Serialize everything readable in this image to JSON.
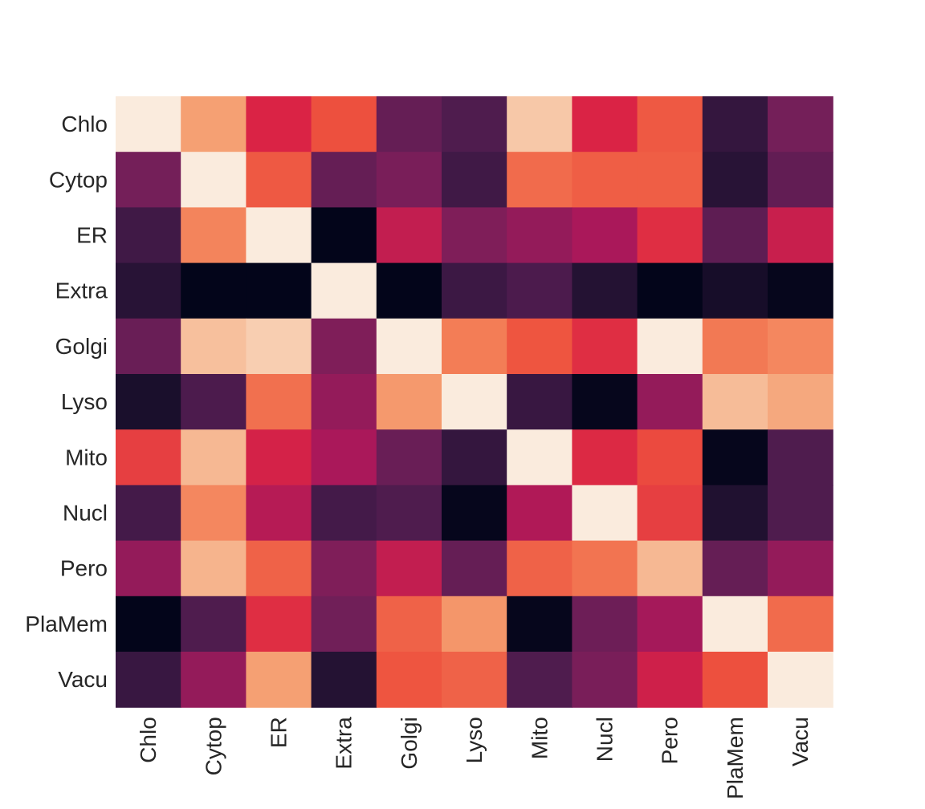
{
  "chart_data": {
    "type": "heatmap",
    "title": "",
    "xlabel": "",
    "ylabel": "",
    "row_labels": [
      "Chlo",
      "Cytop",
      "ER",
      "Extra",
      "Golgi",
      "Lyso",
      "Mito",
      "Nucl",
      "Pero",
      "PlaMem",
      "Vacu"
    ],
    "col_labels": [
      "Chlo",
      "Cytop",
      "ER",
      "Extra",
      "Golgi",
      "Lyso",
      "Mito",
      "Nucl",
      "Pero",
      "PlaMem",
      "Vacu"
    ],
    "value_range": [
      0,
      1
    ],
    "colormap": "rocket",
    "colorbar": false,
    "values": [
      [
        1.0,
        0.78,
        0.5,
        0.58,
        0.28,
        0.22,
        0.88,
        0.5,
        0.6,
        0.15,
        0.32
      ],
      [
        0.32,
        1.0,
        0.6,
        0.28,
        0.33,
        0.18,
        0.64,
        0.61,
        0.61,
        0.12,
        0.27
      ],
      [
        0.18,
        0.7,
        1.0,
        0.0,
        0.46,
        0.34,
        0.38,
        0.42,
        0.52,
        0.26,
        0.47
      ],
      [
        0.12,
        0.0,
        0.0,
        1.0,
        0.0,
        0.17,
        0.21,
        0.11,
        0.0,
        0.07,
        0.01
      ],
      [
        0.29,
        0.86,
        0.9,
        0.34,
        1.0,
        0.68,
        0.59,
        0.52,
        1.0,
        0.67,
        0.71
      ],
      [
        0.08,
        0.21,
        0.65,
        0.38,
        0.76,
        1.0,
        0.16,
        0.01,
        0.38,
        0.85,
        0.8
      ],
      [
        0.55,
        0.84,
        0.49,
        0.42,
        0.29,
        0.15,
        1.0,
        0.51,
        0.57,
        0.01,
        0.22
      ],
      [
        0.19,
        0.71,
        0.44,
        0.19,
        0.22,
        0.01,
        0.43,
        1.0,
        0.55,
        0.1,
        0.22
      ],
      [
        0.38,
        0.83,
        0.62,
        0.34,
        0.46,
        0.28,
        0.62,
        0.66,
        0.84,
        0.28,
        0.38
      ],
      [
        0.0,
        0.22,
        0.52,
        0.31,
        0.62,
        0.75,
        0.01,
        0.3,
        0.41,
        1.0,
        0.64
      ],
      [
        0.16,
        0.38,
        0.78,
        0.11,
        0.59,
        0.62,
        0.22,
        0.33,
        0.48,
        0.58,
        1.0
      ]
    ]
  }
}
